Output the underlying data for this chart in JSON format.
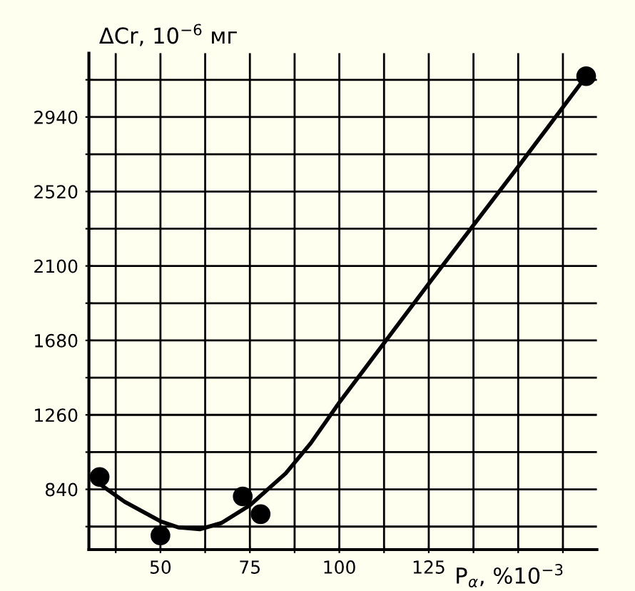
{
  "chart_data": {
    "type": "scatter",
    "xlabel": "P$_{α}$, %10$^{−3}$",
    "ylabel": "ΔCr, 10$^{−6}$ мг",
    "series": [
      {
        "color": "#000000",
        "marker": "circle",
        "x": [
          33,
          50,
          73,
          78,
          169
        ],
        "values": [
          910,
          580,
          800,
          700,
          3170
        ]
      },
      {
        "type": "line",
        "color": "#000000",
        "marker": "none",
        "line_style": "solid",
        "x": [
          33,
          40,
          50,
          55,
          61,
          67,
          75,
          85,
          92,
          100,
          125,
          150,
          169
        ],
        "values": [
          870,
          770,
          660,
          625,
          615,
          650,
          750,
          930,
          1100,
          1330,
          2000,
          2660,
          3170
        ]
      }
    ],
    "xlim": [
      30,
      172
    ],
    "ylim": [
      500,
      3300
    ],
    "xticks": [
      {
        "value": 37.5,
        "label": null
      },
      50,
      {
        "value": 62.5,
        "label": null
      },
      75,
      {
        "value": 87.5,
        "label": null
      },
      100,
      {
        "value": 112.5,
        "label": null
      },
      125,
      {
        "value": 137.5,
        "label": null
      },
      {
        "value": 150,
        "label": null
      },
      {
        "value": 162.5,
        "label": null
      }
    ],
    "yticks": [
      {
        "value": 630,
        "label": null
      },
      840,
      {
        "value": 1050,
        "label": null
      },
      1260,
      {
        "value": 1470,
        "label": null
      },
      1680,
      {
        "value": 1890,
        "label": null
      },
      2100,
      {
        "value": 2310,
        "label": null
      },
      2520,
      {
        "value": 2730,
        "label": null
      },
      2940,
      {
        "value": 3150,
        "label": null
      }
    ],
    "grid": true
  }
}
